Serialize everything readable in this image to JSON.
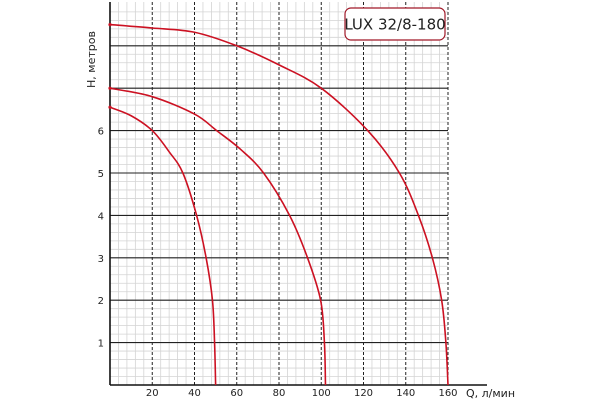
{
  "chart_data": {
    "type": "line",
    "title": "LUX 32/8-180",
    "xlabel": "Q, л/мин",
    "ylabel": "H, метров",
    "xlim": [
      0,
      160
    ],
    "ylim": [
      0,
      8.9
    ],
    "xticks": [
      "20",
      "40",
      "60",
      "80",
      "100",
      "120",
      "140",
      "160"
    ],
    "xtick_values": [
      20,
      40,
      60,
      80,
      100,
      120,
      140,
      160
    ],
    "yticks": [
      "1",
      "2",
      "3",
      "4",
      "5",
      "6"
    ],
    "ytick_values": [
      1,
      2,
      3,
      4,
      5,
      6
    ],
    "grid": true,
    "series_color": "#cc1122",
    "series": [
      {
        "x": [
          0,
          20,
          40,
          60,
          80,
          100,
          122,
          137,
          146,
          152.6,
          157,
          159,
          160
        ],
        "y": [
          8.5,
          8.42,
          8.32,
          8.0,
          7.55,
          7.0,
          6.0,
          5.0,
          4.0,
          3.0,
          2.0,
          1.0,
          0
        ]
      },
      {
        "x": [
          0,
          20,
          40,
          50.5,
          62,
          72.7,
          85,
          93.5,
          99.7,
          101.5,
          102
        ],
        "y": [
          7.0,
          6.8,
          6.39,
          6.0,
          5.55,
          5.0,
          4.0,
          3.0,
          2.0,
          1.0,
          0
        ]
      },
      {
        "x": [
          0,
          10,
          20,
          28,
          34.5,
          41,
          45.5,
          48.5,
          49.5,
          50
        ],
        "y": [
          6.55,
          6.35,
          6.0,
          5.5,
          5.0,
          4.0,
          3.0,
          2.0,
          1.0,
          0
        ]
      }
    ]
  }
}
